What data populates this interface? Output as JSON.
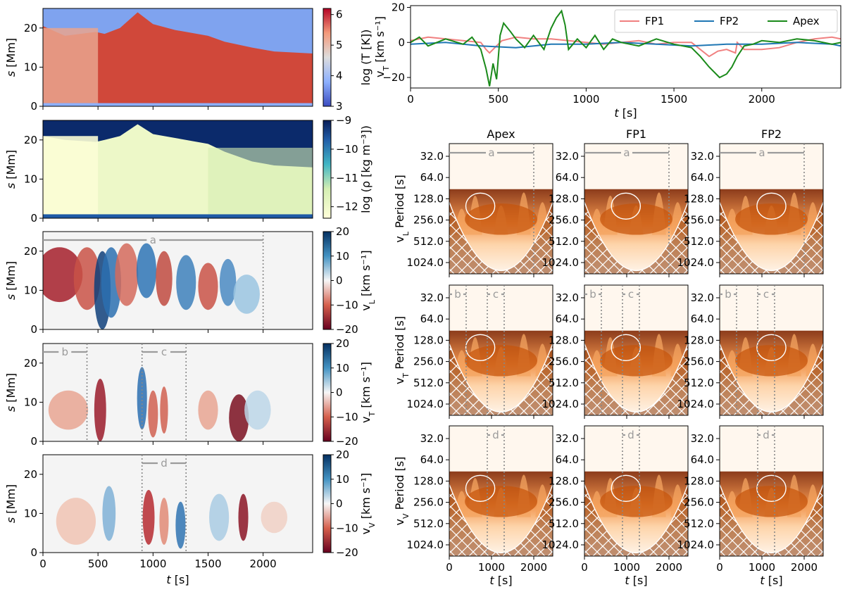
{
  "chart_data": {
    "type": "figure-grid",
    "heatmaps": [
      {
        "id": "T",
        "ylabel": "s [Mm]",
        "cbar_label": "log (T [K])",
        "cbar_ticks": [
          "3",
          "4",
          "5",
          "6"
        ],
        "cbar_range": [
          3,
          6.2
        ],
        "colormap": "coolwarm",
        "yticks": [
          "0",
          "10",
          "20"
        ],
        "markers": []
      },
      {
        "id": "rho",
        "ylabel": "s [Mm]",
        "cbar_label": "log (ρ [kg m⁻³])",
        "cbar_ticks": [
          "−12",
          "−11",
          "−10",
          "−9"
        ],
        "cbar_range": [
          -12.4,
          -9
        ],
        "colormap": "YlGnBu",
        "yticks": [
          "0",
          "10",
          "20"
        ],
        "markers": []
      },
      {
        "id": "vL",
        "ylabel": "s [Mm]",
        "cbar_label": "v_L [km s⁻¹]",
        "cbar_ticks": [
          "20",
          "10",
          "0",
          "−10",
          "−20"
        ],
        "cbar_range": [
          -20,
          20
        ],
        "colormap": "RdBu",
        "yticks": [
          "0",
          "10",
          "20"
        ],
        "markers": [
          {
            "label": "a",
            "t0": 0,
            "t1": 2000
          }
        ],
        "vlines": [
          2000
        ]
      },
      {
        "id": "vT",
        "ylabel": "s [Mm]",
        "cbar_label": "v_T [km s⁻¹]",
        "cbar_ticks": [
          "20",
          "10",
          "0",
          "−10",
          "−20"
        ],
        "cbar_range": [
          -20,
          20
        ],
        "colormap": "RdBu",
        "yticks": [
          "0",
          "10",
          "20"
        ],
        "markers": [
          {
            "label": "b",
            "t0": 0,
            "t1": 400
          },
          {
            "label": "c",
            "t0": 900,
            "t1": 1300
          }
        ],
        "vlines": [
          400,
          900,
          1300
        ]
      },
      {
        "id": "vV",
        "ylabel": "s [Mm]",
        "cbar_label": "v_V [km s⁻¹]",
        "cbar_ticks": [
          "20",
          "10",
          "0",
          "−10",
          "−20"
        ],
        "cbar_range": [
          -20,
          20
        ],
        "colormap": "RdBu",
        "yticks": [
          "0",
          "10",
          "20"
        ],
        "markers": [
          {
            "label": "d",
            "t0": 900,
            "t1": 1300
          }
        ],
        "vlines": [
          900,
          1300
        ]
      }
    ],
    "heatmap_xaxis": {
      "xlabel": "t [s]",
      "xticks": [
        "0",
        "500",
        "1000",
        "1500",
        "2000"
      ],
      "xlim": [
        0,
        2450
      ],
      "ylim": [
        0,
        25
      ]
    },
    "line_plot": {
      "type": "line",
      "xlabel": "t [s]",
      "ylabel": "v_T [km s⁻¹]",
      "xlim": [
        0,
        2450
      ],
      "ylim": [
        -26,
        21
      ],
      "xticks": [
        "0",
        "500",
        "1000",
        "1500",
        "2000"
      ],
      "yticks": [
        "−20",
        "0",
        "20"
      ],
      "series": [
        {
          "name": "FP1",
          "color": "#f08080",
          "x": [
            0,
            100,
            200,
            300,
            400,
            430,
            450,
            480,
            520,
            560,
            600,
            700,
            800,
            900,
            1000,
            1100,
            1200,
            1300,
            1400,
            1500,
            1600,
            1700,
            1750,
            1800,
            1850,
            1860,
            1900,
            2000,
            2100,
            2200,
            2300,
            2400,
            2450
          ],
          "y": [
            1,
            3,
            2,
            1,
            0,
            -4,
            -6,
            -3,
            1,
            2,
            3,
            2,
            2,
            1,
            0,
            -1,
            0,
            1,
            -1,
            0,
            0,
            -8,
            -5,
            -4,
            -6,
            0,
            -4,
            -4,
            -3,
            0,
            2,
            3,
            2
          ]
        },
        {
          "name": "FP2",
          "color": "#1f77b4",
          "x": [
            0,
            200,
            400,
            600,
            800,
            1000,
            1200,
            1400,
            1600,
            1800,
            2000,
            2200,
            2400,
            2450
          ],
          "y": [
            -1,
            0,
            -2,
            -3,
            -1,
            -1,
            0,
            -1,
            -2,
            -1,
            -1,
            0,
            -1,
            -2
          ]
        },
        {
          "name": "Apex",
          "color": "#1a8a1a",
          "x": [
            0,
            50,
            100,
            200,
            300,
            350,
            400,
            430,
            450,
            470,
            490,
            510,
            530,
            570,
            600,
            650,
            700,
            760,
            800,
            830,
            860,
            880,
            900,
            950,
            1000,
            1050,
            1100,
            1150,
            1200,
            1300,
            1400,
            1500,
            1600,
            1650,
            1700,
            1760,
            1800,
            1830,
            1860,
            1900,
            1950,
            2000,
            2100,
            2200,
            2300,
            2400,
            2450
          ],
          "y": [
            0,
            3,
            -2,
            2,
            -1,
            3,
            -4,
            -15,
            -25,
            -12,
            -21,
            4,
            11,
            6,
            2,
            -3,
            4,
            -4,
            8,
            14,
            18,
            10,
            -4,
            2,
            -3,
            4,
            -4,
            2,
            0,
            -2,
            2,
            -1,
            -3,
            -8,
            -14,
            -20,
            -18,
            -14,
            -8,
            -2,
            -1,
            1,
            0,
            2,
            1,
            -1,
            0
          ]
        }
      ],
      "legend": [
        "FP1",
        "FP2",
        "Apex"
      ]
    },
    "wavelets": {
      "columns": [
        "Apex",
        "FP1",
        "FP2"
      ],
      "row_ylabels": [
        "v_L Period [s]",
        "v_T Period [s]",
        "v_V Period [s]"
      ],
      "yticks": [
        "32.0",
        "64.0",
        "128.0",
        "256.0",
        "512.0",
        "1024.0"
      ],
      "xlabel": "t [s]",
      "xticks": [
        "0",
        "1000",
        "2000"
      ],
      "xlim": [
        0,
        2450
      ],
      "row_markers": [
        [
          {
            "label": "a",
            "t0": 0,
            "t1": 2000
          }
        ],
        [
          {
            "label": "b",
            "t0": 0,
            "t1": 400
          },
          {
            "label": "c",
            "t0": 900,
            "t1": 1300
          }
        ],
        [
          {
            "label": "d",
            "t0": 900,
            "t1": 1300
          }
        ]
      ],
      "row_vlines": [
        [
          2000
        ],
        [
          400,
          900,
          1300
        ],
        [
          900,
          1300
        ]
      ],
      "colormap": "Oranges"
    }
  }
}
